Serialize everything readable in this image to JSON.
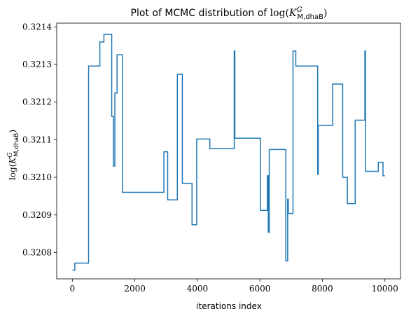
{
  "chart_data": {
    "type": "line",
    "title": "Plot of MCMC distribution of log(K^G_M,dhaB)",
    "title_parts": {
      "prefix": "Plot of MCMC distribution of ",
      "fn": "log(",
      "sym": "K",
      "sup": "G",
      "sub": "M,dhaB",
      "close": ")"
    },
    "xlabel": "iterations index",
    "ylabel": "log(K^G_M,dhaB)",
    "ylabel_parts": {
      "fn": "log(",
      "sym": "K",
      "sup": "G",
      "sub": "M,dhaB",
      "close": ")"
    },
    "xlim": [
      -500,
      10500
    ],
    "ylim": [
      0.32073,
      0.32141
    ],
    "x_ticks": [
      0,
      2000,
      4000,
      6000,
      8000,
      10000
    ],
    "x_tick_labels": [
      "0",
      "2000",
      "4000",
      "6000",
      "8000",
      "10000"
    ],
    "y_ticks": [
      0.3208,
      0.3209,
      0.321,
      0.3211,
      0.3212,
      0.3213,
      0.3214
    ],
    "y_tick_labels": [
      "0.3208",
      "0.3209",
      "0.3210",
      "0.3211",
      "0.3212",
      "0.3213",
      "0.3214"
    ],
    "grid": false,
    "line_color": "#1f77b4",
    "series": [
      {
        "x": [
          0,
          80,
          80,
          520,
          520,
          880,
          880,
          1010,
          1010,
          1260,
          1260,
          1310,
          1310,
          1360,
          1360,
          1430,
          1430,
          1600,
          1600,
          1880,
          1880,
          2930,
          2930,
          3050,
          3050,
          3360,
          3360,
          3520,
          3520,
          3830,
          3830,
          3980,
          3980,
          4400,
          4400,
          5180,
          5180,
          5200,
          5200,
          6020,
          6020,
          6240,
          6240,
          6270,
          6270,
          6300,
          6300,
          6330,
          6330,
          6830,
          6830,
          6890,
          6890,
          6910,
          6910,
          7060,
          7060,
          7150,
          7150,
          7850,
          7850,
          7870,
          7870,
          8330,
          8330,
          8650,
          8650,
          8800,
          8800,
          9050,
          9050,
          9360,
          9360,
          9380,
          9380,
          9400,
          9400,
          9790,
          9790,
          9940,
          9940,
          10000
        ],
        "y": [
          0.320753,
          0.320753,
          0.320772,
          0.320772,
          0.321296,
          0.321296,
          0.32136,
          0.32136,
          0.32138,
          0.32138,
          0.321162,
          0.321162,
          0.32103,
          0.32103,
          0.321224,
          0.321224,
          0.321326,
          0.321326,
          0.32096,
          0.32096,
          0.32096,
          0.32096,
          0.321068,
          0.321068,
          0.32094,
          0.32094,
          0.321274,
          0.321274,
          0.320984,
          0.320984,
          0.320874,
          0.320874,
          0.321102,
          0.321102,
          0.321076,
          0.321076,
          0.321336,
          0.321336,
          0.321104,
          0.321104,
          0.320912,
          0.320912,
          0.321004,
          0.321004,
          0.320854,
          0.320854,
          0.321074,
          0.321074,
          0.321074,
          0.321074,
          0.320778,
          0.320778,
          0.320942,
          0.320942,
          0.320904,
          0.320904,
          0.321336,
          0.321336,
          0.321296,
          0.321296,
          0.321008,
          0.321008,
          0.321138,
          0.321138,
          0.321248,
          0.321248,
          0.321,
          0.321,
          0.32093,
          0.32093,
          0.321152,
          0.321152,
          0.321336,
          0.321336,
          0.321016,
          0.321016,
          0.321016,
          0.321016,
          0.32104,
          0.32104,
          0.321004,
          0.321004
        ]
      }
    ]
  }
}
